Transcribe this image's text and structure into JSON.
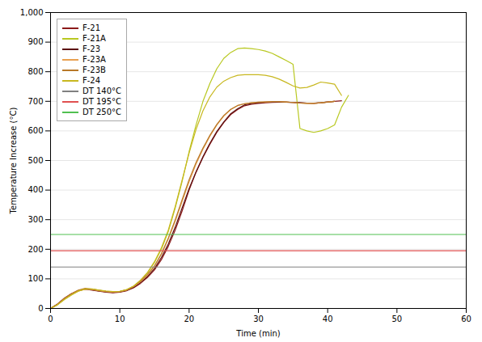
{
  "chart_data": {
    "type": "line",
    "xlabel": "Time (min)",
    "ylabel": "Temperature Increase (°C)",
    "xlim": [
      0,
      60
    ],
    "ylim": [
      0,
      1000
    ],
    "xticks": [
      0,
      10,
      20,
      30,
      40,
      50,
      60
    ],
    "yticks": [
      0,
      100,
      200,
      300,
      400,
      500,
      600,
      700,
      800,
      900,
      1000
    ],
    "grid": true,
    "legend": "upper left",
    "series": [
      {
        "name": "F-21",
        "color": "#8B1A1A",
        "x": [
          0,
          1,
          2,
          3,
          4,
          5,
          6,
          7,
          8,
          9,
          10,
          11,
          12,
          13,
          14,
          15,
          16,
          17,
          18,
          19,
          20,
          21,
          22,
          23,
          24,
          25,
          26,
          27,
          28,
          29,
          30,
          31,
          32,
          33,
          34,
          35,
          36,
          37,
          38,
          39,
          40,
          41,
          42
        ],
        "values": [
          0,
          15,
          35,
          50,
          60,
          65,
          62,
          58,
          55,
          53,
          55,
          60,
          70,
          85,
          105,
          130,
          165,
          210,
          265,
          330,
          400,
          460,
          510,
          555,
          595,
          628,
          655,
          672,
          685,
          690,
          693,
          695,
          696,
          697,
          697,
          696,
          695,
          694,
          693,
          695,
          698,
          700,
          702
        ]
      },
      {
        "name": "F-21A",
        "color": "#b8c820",
        "x": [
          0,
          1,
          2,
          3,
          4,
          5,
          6,
          7,
          8,
          9,
          10,
          11,
          12,
          13,
          14,
          15,
          16,
          17,
          18,
          19,
          20,
          21,
          22,
          23,
          24,
          25,
          26,
          27,
          28,
          29,
          30,
          31,
          32,
          33,
          34,
          35,
          36,
          37,
          38,
          39,
          40,
          41,
          42,
          43
        ],
        "values": [
          0,
          12,
          30,
          45,
          58,
          65,
          65,
          62,
          58,
          55,
          57,
          63,
          75,
          95,
          120,
          155,
          200,
          260,
          340,
          430,
          530,
          620,
          700,
          760,
          810,
          845,
          865,
          878,
          880,
          878,
          875,
          870,
          862,
          850,
          838,
          825,
          608,
          600,
          595,
          600,
          608,
          620,
          680,
          720
        ]
      },
      {
        "name": "F-23",
        "color": "#5C1010",
        "x": [
          0,
          1,
          2,
          3,
          4,
          5,
          6,
          7,
          8,
          9,
          10,
          11,
          12,
          13,
          14,
          15,
          16,
          17,
          18,
          19,
          20,
          21,
          22,
          23,
          24,
          25,
          26,
          27,
          28,
          29,
          30,
          31,
          32,
          33,
          34,
          35,
          36,
          37,
          38,
          39,
          40,
          41
        ],
        "values": [
          0,
          14,
          33,
          48,
          60,
          66,
          63,
          59,
          56,
          54,
          56,
          61,
          72,
          88,
          108,
          135,
          172,
          218,
          275,
          340,
          405,
          462,
          513,
          558,
          598,
          630,
          658,
          675,
          688,
          692,
          695,
          697,
          698,
          698,
          697,
          696,
          695,
          694,
          694,
          695,
          698,
          700
        ]
      },
      {
        "name": "F-23A",
        "color": "#e8a050",
        "x": [
          0,
          1,
          2,
          3,
          4,
          5,
          6,
          7,
          8,
          9,
          10,
          11,
          12,
          13,
          14,
          15,
          16,
          17,
          18,
          19,
          20,
          21,
          22,
          23,
          24,
          25,
          26,
          27,
          28,
          29,
          30,
          31,
          32,
          33,
          34,
          35,
          36,
          37,
          38,
          39,
          40,
          41
        ],
        "values": [
          0,
          13,
          32,
          47,
          59,
          65,
          64,
          60,
          57,
          55,
          57,
          62,
          74,
          91,
          113,
          142,
          183,
          235,
          295,
          362,
          428,
          488,
          538,
          582,
          620,
          650,
          672,
          685,
          692,
          695,
          697,
          698,
          699,
          699,
          698,
          696,
          694,
          693,
          693,
          695,
          698,
          700
        ]
      },
      {
        "name": "F-23B",
        "color": "#b87828",
        "x": [
          0,
          1,
          2,
          3,
          4,
          5,
          6,
          7,
          8,
          9,
          10,
          11,
          12,
          13,
          14,
          15,
          16,
          17,
          18,
          19,
          20,
          21,
          22,
          23,
          24,
          25,
          26,
          27,
          28,
          29,
          30,
          31,
          32,
          33,
          34,
          35,
          36,
          37,
          38,
          39,
          40,
          41
        ],
        "values": [
          0,
          14,
          34,
          50,
          62,
          68,
          65,
          61,
          58,
          56,
          57,
          63,
          75,
          93,
          115,
          144,
          185,
          238,
          300,
          368,
          435,
          493,
          542,
          585,
          622,
          652,
          673,
          686,
          692,
          695,
          697,
          698,
          699,
          699,
          698,
          696,
          694,
          693,
          693,
          695,
          697,
          700
        ]
      },
      {
        "name": "F-24",
        "color": "#c8b820",
        "x": [
          0,
          1,
          2,
          3,
          4,
          5,
          6,
          7,
          8,
          9,
          10,
          11,
          12,
          13,
          14,
          15,
          16,
          17,
          18,
          19,
          20,
          21,
          22,
          23,
          24,
          25,
          26,
          27,
          28,
          29,
          30,
          31,
          32,
          33,
          34,
          35,
          36,
          37,
          38,
          39,
          40,
          41,
          42
        ],
        "values": [
          0,
          13,
          31,
          46,
          59,
          66,
          66,
          62,
          59,
          57,
          58,
          64,
          76,
          96,
          122,
          158,
          205,
          265,
          345,
          435,
          525,
          605,
          668,
          715,
          748,
          768,
          780,
          788,
          790,
          790,
          790,
          788,
          783,
          775,
          764,
          752,
          745,
          747,
          755,
          765,
          762,
          758,
          720
        ]
      },
      {
        "name": "DT 140°C",
        "color": "#808080",
        "type": "hline",
        "values": [
          140
        ]
      },
      {
        "name": "DT 195°C",
        "color": "#e05050",
        "type": "hline",
        "values": [
          195
        ]
      },
      {
        "name": "DT 250°C",
        "color": "#50c050",
        "type": "hline",
        "values": [
          250
        ]
      }
    ]
  }
}
